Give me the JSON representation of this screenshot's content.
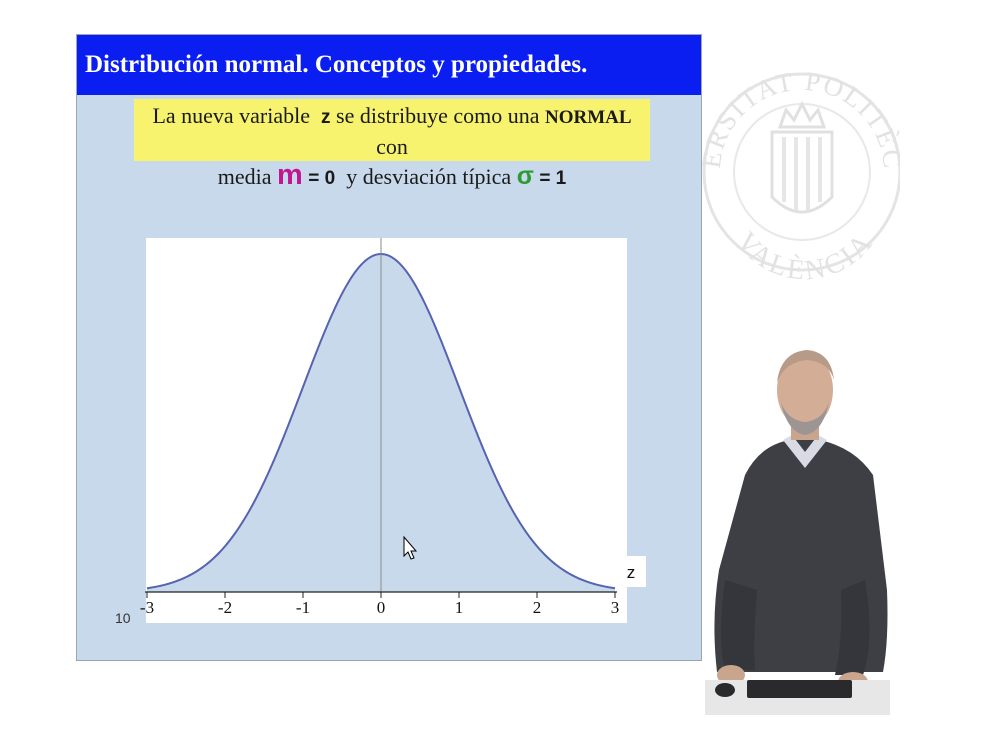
{
  "slide": {
    "title": "Distribución normal. Conceptos y propiedades.",
    "info": {
      "part1": "La nueva variable",
      "var_z": "z",
      "part2": "se distribuye como una",
      "normal": "NORMAL",
      "part3": "con",
      "part4": "media",
      "mu_symbol": "m",
      "mu_value": "= 0",
      "part5": "y desviación típica",
      "sigma_symbol": "σ",
      "sigma_value": "= 1"
    },
    "slide_number": "10"
  },
  "chart_data": {
    "type": "area",
    "function": "standard normal density",
    "mean": 0,
    "sd": 1,
    "x_range": [
      -3,
      3
    ],
    "xticks": [
      "-3",
      "-2",
      "-1",
      "0",
      "1",
      "2",
      "3"
    ],
    "xlabel": "z",
    "fill_color": "#c9d9ec",
    "line_color": "#5563b0"
  },
  "seal": {
    "text_top": "UNIVERSITAT POLITÈCNICA",
    "text_bottom": "VALÈNCIA"
  },
  "colors": {
    "title_bar": "#0a1ef2",
    "info_box": "#f7f36f",
    "slide_bg": "#c9d9ec",
    "mu": "#c0168f",
    "sigma": "#2e9a32"
  }
}
